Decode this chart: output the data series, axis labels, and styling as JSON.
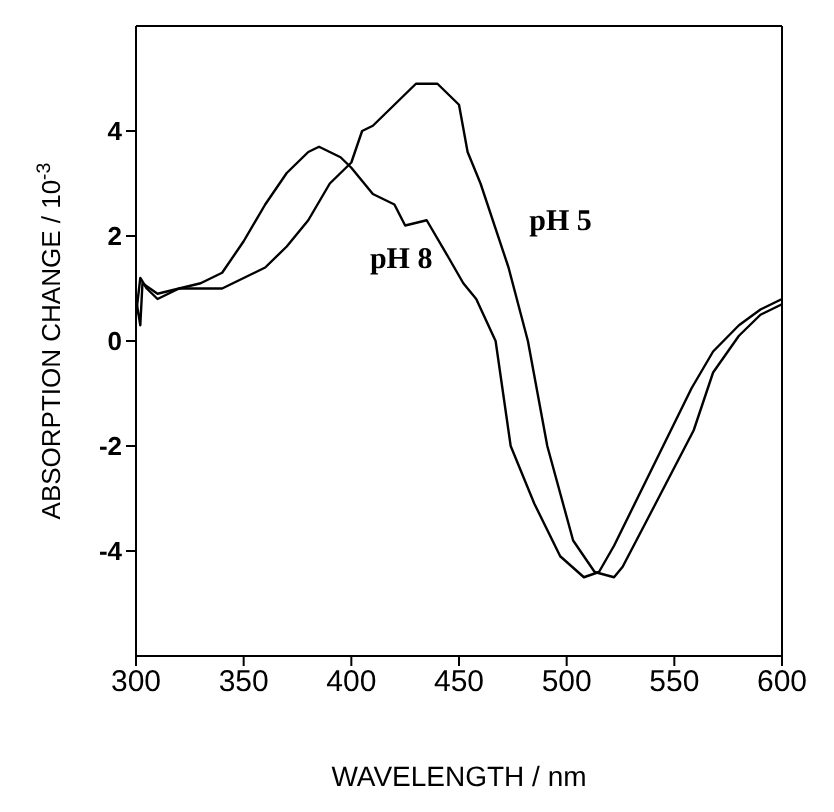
{
  "chart_data": {
    "type": "line",
    "xlabel": "WAVELENGTH / nm",
    "ylabel": "ABSORPTION CHANGE / 10$^{-3}$",
    "xlim": [
      300,
      600
    ],
    "ylim": [
      -6,
      6
    ],
    "xticks": [
      300,
      350,
      400,
      450,
      500,
      550,
      600
    ],
    "yticks": [
      -4,
      -2,
      0,
      2,
      4
    ],
    "marker": "none",
    "line_style": "solid",
    "series": [
      {
        "name": "pH 5",
        "color": "#000000",
        "x": [
          300,
          302,
          303,
          310,
          320,
          330,
          340,
          350,
          360,
          370,
          380,
          390,
          400,
          405,
          410,
          420,
          430,
          440,
          450,
          454,
          460,
          473,
          482,
          491,
          503,
          513,
          522,
          526,
          540,
          559,
          568,
          580,
          590,
          600
        ],
        "values": [
          0.8,
          0.3,
          1.1,
          0.9,
          1.0,
          1.0,
          1.0,
          1.2,
          1.4,
          1.8,
          2.3,
          3.0,
          3.4,
          4.0,
          4.1,
          4.5,
          4.9,
          4.9,
          4.5,
          3.6,
          3.0,
          1.4,
          0,
          -2,
          -3.8,
          -4.4,
          -4.5,
          -4.3,
          -3.2,
          -1.7,
          -0.6,
          0.1,
          0.5,
          0.7
        ]
      },
      {
        "name": "pH 8",
        "color": "#000000",
        "x": [
          300,
          302,
          305,
          310,
          320,
          330,
          340,
          350,
          360,
          370,
          380,
          385,
          395,
          400,
          410,
          420,
          425,
          435,
          445,
          452,
          458,
          467,
          474,
          485,
          497,
          508,
          515,
          522,
          540,
          558,
          568,
          580,
          590,
          600
        ],
        "values": [
          0.5,
          1.2,
          1.0,
          0.8,
          1.0,
          1.1,
          1.3,
          1.9,
          2.6,
          3.2,
          3.6,
          3.7,
          3.5,
          3.3,
          2.8,
          2.6,
          2.2,
          2.3,
          1.6,
          1.1,
          0.8,
          0,
          -2,
          -3.1,
          -4.1,
          -4.5,
          -4.4,
          -3.9,
          -2.4,
          -0.9,
          -0.2,
          0.3,
          0.6,
          0.8
        ]
      }
    ]
  }
}
